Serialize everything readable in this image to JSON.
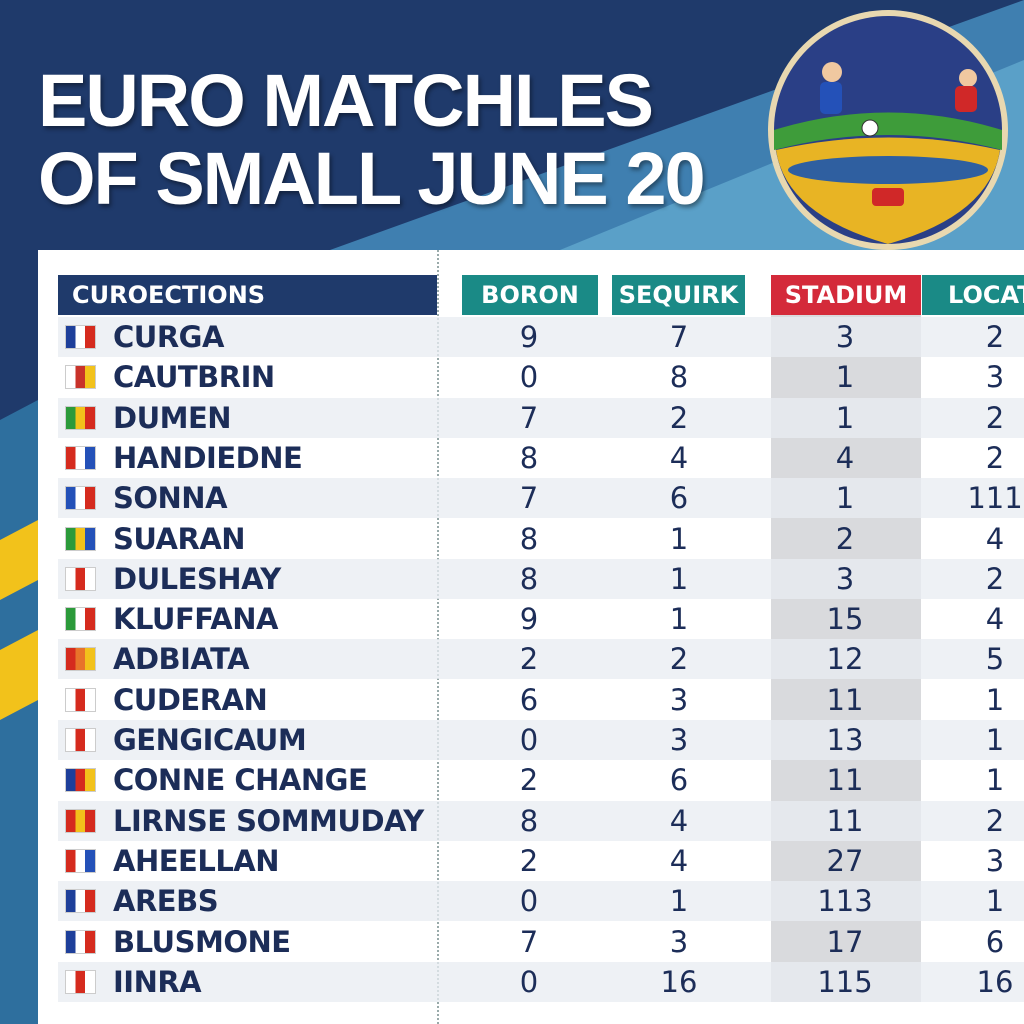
{
  "header": {
    "title_lines": [
      "EURO MATCHLES",
      "OF SMALL JUNE 20"
    ]
  },
  "table": {
    "columns": [
      "CUROECTIONS",
      "BORON",
      "SEQUIRK",
      "STADIUM",
      "LOCAT"
    ],
    "rows": [
      [
        "CURGA",
        9,
        7,
        3,
        2
      ],
      [
        "CAUTBRIN",
        0,
        8,
        1,
        3
      ],
      [
        "DUMEN",
        7,
        2,
        1,
        2
      ],
      [
        "HANDIEDNE",
        8,
        4,
        4,
        2
      ],
      [
        "SONNA",
        7,
        6,
        1,
        111
      ],
      [
        "SUARAN",
        8,
        1,
        2,
        4
      ],
      [
        "DULESHAY",
        8,
        1,
        3,
        2
      ],
      [
        "KLUFFANA",
        9,
        1,
        15,
        4
      ],
      [
        "ADBIATA",
        2,
        2,
        12,
        5
      ],
      [
        "CUDERAN",
        6,
        3,
        11,
        1
      ],
      [
        "GENGICAUM",
        0,
        3,
        13,
        1
      ],
      [
        "CONNE CHANGE",
        2,
        6,
        11,
        1
      ],
      [
        "LIRNSE SOMMUDAY",
        8,
        4,
        11,
        2
      ],
      [
        "AHEELLAN",
        2,
        4,
        27,
        3
      ],
      [
        "AREBS",
        0,
        1,
        113,
        1
      ],
      [
        "BLUSMONE",
        7,
        3,
        17,
        6
      ],
      [
        "IINRA",
        0,
        16,
        115,
        16
      ]
    ]
  }
}
